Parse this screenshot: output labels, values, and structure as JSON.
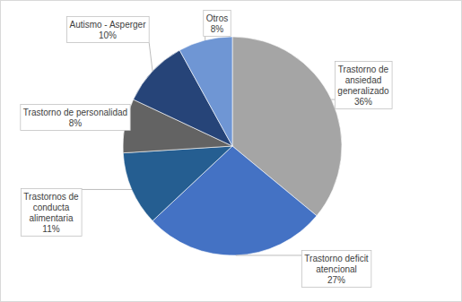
{
  "chart_data": {
    "type": "pie",
    "categories": [
      "Trastorno de ansiedad generalizado",
      "Trastorno deficit atencional",
      "Trastornos de conducta alimentaria",
      "Trastorno de personalidad",
      "Autismo - Asperger",
      "Otros"
    ],
    "values": [
      36,
      27,
      11,
      8,
      10,
      8
    ],
    "value_labels": [
      "36%",
      "27%",
      "11%",
      "8%",
      "10%",
      "8%"
    ],
    "colors": [
      "#a5a5a5",
      "#4472c4",
      "#255e91",
      "#636363",
      "#264478",
      "#6f96d4"
    ],
    "data_labels": true
  }
}
